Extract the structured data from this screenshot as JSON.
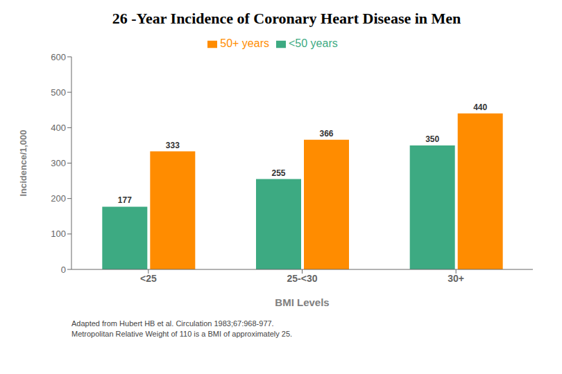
{
  "chart_data": {
    "type": "bar",
    "title": "26 -Year Incidence of Coronary Heart Disease in Men",
    "categories": [
      "<25",
      "25-<30",
      "30+"
    ],
    "series": [
      {
        "name": "<50 years",
        "color": "#3DAA82",
        "values": [
          177,
          255,
          350
        ]
      },
      {
        "name": "50+ years",
        "color": "#FF8C00",
        "values": [
          333,
          366,
          440
        ]
      }
    ],
    "xlabel": "BMI Levels",
    "ylabel": "Incidence/1,000",
    "ylim": [
      0,
      600
    ],
    "yticks": [
      0,
      100,
      200,
      300,
      400,
      500,
      600
    ],
    "grid": false,
    "legend": "top",
    "data_labels": true,
    "annotations": [
      "Adapted from Hubert HB et al.  Circulation 1983;67:968-977.",
      "Metropolitan Relative Weight of 110 is a BMI of approximately 25."
    ]
  }
}
